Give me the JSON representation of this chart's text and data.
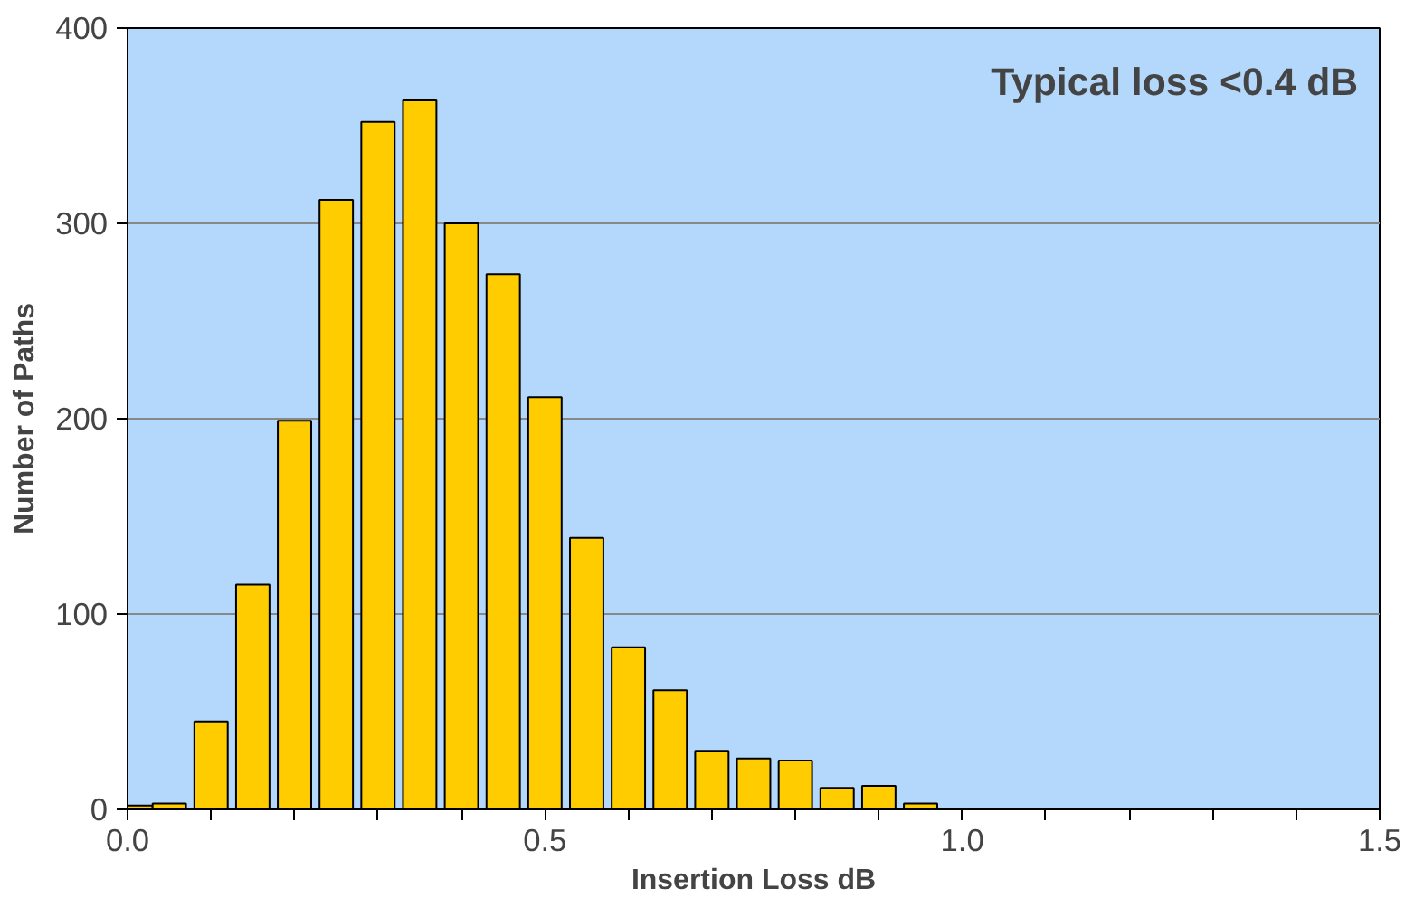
{
  "chart_data": {
    "type": "bar",
    "xlabel": "Insertion Loss dB",
    "ylabel": "Number of Paths",
    "x": [
      0.01,
      0.05,
      0.1,
      0.15,
      0.2,
      0.25,
      0.3,
      0.35,
      0.4,
      0.45,
      0.5,
      0.55,
      0.6,
      0.65,
      0.7,
      0.75,
      0.8,
      0.85,
      0.9,
      0.95
    ],
    "series": [
      {
        "color": "#ffcc00",
        "values": [
          2,
          3,
          45,
          115,
          199,
          312,
          352,
          363,
          300,
          274,
          211,
          139,
          83,
          61,
          30,
          26,
          25,
          11,
          12,
          3
        ]
      }
    ],
    "xlim": [
      0,
      1.5
    ],
    "xticks": [
      {
        "value": 0.0,
        "label": "0.0"
      },
      {
        "value": 0.1,
        "label": null
      },
      {
        "value": 0.2,
        "label": null
      },
      {
        "value": 0.3,
        "label": null
      },
      {
        "value": 0.4,
        "label": null
      },
      {
        "value": 0.5,
        "label": "0.5"
      },
      {
        "value": 0.6,
        "label": null
      },
      {
        "value": 0.7,
        "label": null
      },
      {
        "value": 0.8,
        "label": null
      },
      {
        "value": 0.9,
        "label": null
      },
      {
        "value": 1.0,
        "label": "1.0"
      },
      {
        "value": 1.1,
        "label": null
      },
      {
        "value": 1.2,
        "label": null
      },
      {
        "value": 1.3,
        "label": null
      },
      {
        "value": 1.4,
        "label": null
      },
      {
        "value": 1.5,
        "label": "1.5"
      }
    ],
    "ylim": [
      0,
      400
    ],
    "yticks": [
      0,
      100,
      200,
      300,
      400
    ],
    "grid": "y",
    "annotations": [
      "Typical loss <0.4 dB"
    ]
  }
}
